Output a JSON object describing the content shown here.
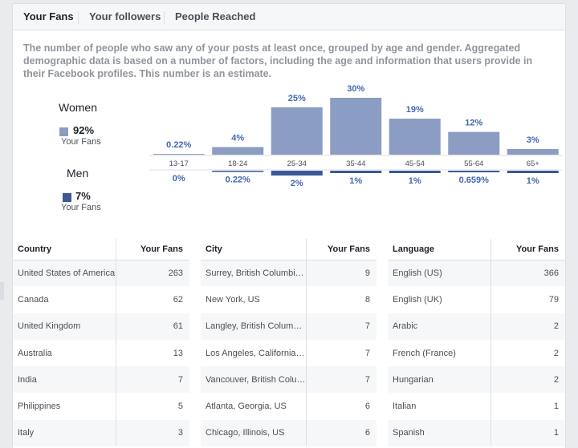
{
  "tabs": [
    {
      "label": "Your Fans",
      "active": true
    },
    {
      "label": "Your followers",
      "active": false
    },
    {
      "label": "People Reached",
      "active": false
    }
  ],
  "description": "The number of people who saw any of your posts at least once, grouped by age and gender. Aggregated demographic data is based on a number of factors, including the age and information that users provide in their Facebook profiles. This number is an estimate.",
  "legend": {
    "women": {
      "title": "Women",
      "pct": "92%",
      "sub": "Your Fans",
      "color": "#8b9dc3"
    },
    "men": {
      "title": "Men",
      "pct": "7%",
      "sub": "Your Fans",
      "color": "#3b5998"
    }
  },
  "chart_data": {
    "type": "bar",
    "categories": [
      "13-17",
      "18-24",
      "25-34",
      "35-44",
      "45-54",
      "55-64",
      "65+"
    ],
    "series": [
      {
        "name": "Women",
        "values": [
          0.22,
          4,
          25,
          30,
          19,
          12,
          3
        ],
        "labels": [
          "0.22%",
          "4%",
          "25%",
          "30%",
          "19%",
          "12%",
          "3%"
        ]
      },
      {
        "name": "Men",
        "values": [
          0,
          0.22,
          2,
          1,
          1,
          0.659,
          1
        ],
        "labels": [
          "0%",
          "0.22%",
          "2%",
          "1%",
          "1%",
          "0.659%",
          "1%"
        ]
      }
    ],
    "ylim": [
      0,
      30
    ],
    "colors": {
      "women": "#8b9dc3",
      "men": "#3b5998",
      "label": "#4267b2"
    }
  },
  "tables": [
    {
      "header": [
        "Country",
        "Your Fans"
      ],
      "rows": [
        [
          "United States of America",
          "263"
        ],
        [
          "Canada",
          "62"
        ],
        [
          "United Kingdom",
          "61"
        ],
        [
          "Australia",
          "13"
        ],
        [
          "India",
          "7"
        ],
        [
          "Philippines",
          "5"
        ],
        [
          "Italy",
          "3"
        ]
      ]
    },
    {
      "header": [
        "City",
        "Your Fans"
      ],
      "rows": [
        [
          "Surrey, British Columbi…",
          "9"
        ],
        [
          "New York, US",
          "8"
        ],
        [
          "Langley, British Colum…",
          "7"
        ],
        [
          "Los Angeles, California…",
          "7"
        ],
        [
          "Vancouver, British Colu…",
          "7"
        ],
        [
          "Atlanta, Georgia, US",
          "6"
        ],
        [
          "Chicago, Illinois, US",
          "6"
        ]
      ]
    },
    {
      "header": [
        "Language",
        "Your Fans"
      ],
      "rows": [
        [
          "English (US)",
          "366"
        ],
        [
          "English (UK)",
          "79"
        ],
        [
          "Arabic",
          "2"
        ],
        [
          "French (France)",
          "2"
        ],
        [
          "Hungarian",
          "2"
        ],
        [
          "Italian",
          "1"
        ],
        [
          "Spanish",
          "1"
        ]
      ]
    }
  ]
}
